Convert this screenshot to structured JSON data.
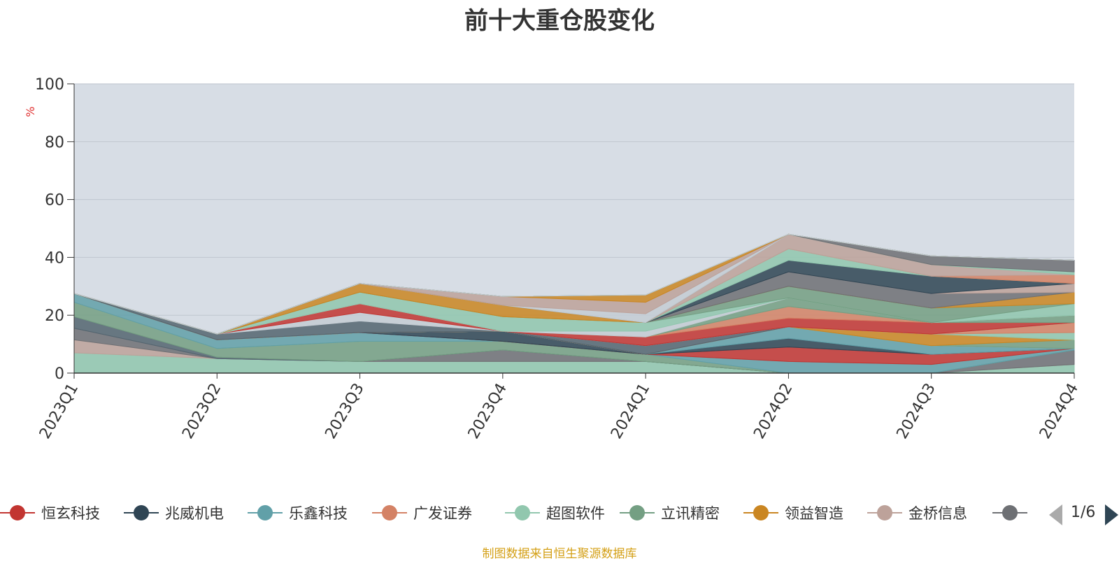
{
  "chart_data": {
    "type": "area",
    "title": "前十大重仓股变化",
    "ylabel": "%",
    "ylim": [
      0,
      100
    ],
    "yticks": [
      0,
      20,
      40,
      60,
      80,
      100
    ],
    "categories": [
      "2023Q1",
      "2023Q2",
      "2023Q3",
      "2023Q4",
      "2024Q1",
      "2024Q2",
      "2024Q3",
      "2024Q4"
    ],
    "stacked": true,
    "grid": true,
    "legend_position": "bottom",
    "series": [
      {
        "name": "恒玄科技",
        "color": "#c23531",
        "values": [
          0,
          0,
          0,
          0,
          0,
          5,
          3.5,
          0
        ]
      },
      {
        "name": "兆威机电",
        "color": "#2f4554",
        "values": [
          0,
          0,
          0,
          3.5,
          0,
          3,
          0,
          0
        ]
      },
      {
        "name": "乐鑫科技",
        "color": "#61a0a8",
        "values": [
          0,
          0,
          0,
          0,
          0,
          4,
          3,
          0.5
        ]
      },
      {
        "name": "广发证券",
        "color": "#d48265",
        "values": [
          0,
          0,
          0,
          0,
          0,
          0,
          0,
          3.5
        ]
      },
      {
        "name": "超图软件",
        "color": "#91c7ae",
        "values": [
          7,
          5,
          4,
          4,
          4,
          0,
          0,
          3
        ]
      },
      {
        "name": "立讯精密",
        "color": "#749f83",
        "values": [
          0,
          0,
          0,
          0,
          2.5,
          0,
          0,
          0
        ]
      },
      {
        "name": "领益智造",
        "color": "#ca8622",
        "values": [
          0,
          0,
          0,
          0,
          0,
          0,
          4,
          0
        ]
      },
      {
        "name": "金桥信息",
        "color": "#bda29a",
        "values": [
          4.5,
          0,
          0,
          0,
          0,
          0,
          0,
          0
        ]
      },
      {
        "name": "",
        "color": "#6e7074",
        "values": [
          4,
          0,
          0,
          4,
          0,
          0,
          0,
          5
        ]
      },
      {
        "name": "",
        "color": "#546570",
        "values": [
          0,
          0,
          0,
          0,
          0,
          0,
          0,
          0
        ]
      },
      {
        "name": "",
        "color": "#c4ccd3",
        "values": [
          0,
          0,
          0,
          0,
          0,
          0,
          0,
          0
        ]
      }
    ],
    "layers": [
      {
        "color": "#91c7ae",
        "values": [
          7,
          5,
          4,
          4,
          4,
          0,
          0,
          3
        ]
      },
      {
        "color": "#bda29a",
        "values": [
          4.5,
          0,
          0,
          0,
          0,
          0,
          0,
          0
        ]
      },
      {
        "color": "#6e7074",
        "values": [
          4,
          0,
          0,
          4,
          0,
          0,
          0,
          5
        ]
      },
      {
        "color": "#546570",
        "values": [
          4,
          0.5,
          0,
          0,
          0,
          0,
          0,
          0
        ]
      },
      {
        "color": "#749f83",
        "values": [
          5,
          3,
          7,
          3,
          2.5,
          0,
          0,
          0
        ]
      },
      {
        "color": "#61a0a8",
        "values": [
          3,
          3,
          3,
          0,
          0,
          4,
          3,
          0.5
        ]
      },
      {
        "color": "#c23531",
        "values": [
          0,
          0,
          0,
          0,
          0,
          5,
          3.5,
          0
        ]
      },
      {
        "color": "#2f4554",
        "values": [
          0,
          0,
          0,
          3.5,
          0,
          3,
          0,
          0
        ]
      },
      {
        "color": "#61a0a8",
        "values": [
          0,
          0,
          0,
          0,
          0,
          4,
          3,
          0
        ]
      },
      {
        "color": "#c4ccd3",
        "values": [
          0,
          0,
          0,
          0,
          0,
          0,
          0,
          0
        ]
      },
      {
        "color": "#749f83",
        "values": [
          0,
          0,
          0,
          0,
          0,
          0,
          0,
          3
        ]
      },
      {
        "color": "#ca8622",
        "values": [
          0,
          0,
          0,
          0,
          0,
          0,
          4,
          0
        ]
      },
      {
        "color": "#91c7ae",
        "values": [
          0,
          0,
          0,
          0,
          0,
          0,
          0,
          2.5
        ]
      },
      {
        "color": "#d48265",
        "values": [
          0,
          0,
          0,
          0,
          0,
          0,
          0,
          3.5
        ]
      },
      {
        "color": "#546570",
        "values": [
          0,
          2,
          4,
          0,
          3,
          0,
          0,
          0
        ]
      },
      {
        "color": "#c4ccd3",
        "values": [
          0,
          0,
          3,
          0,
          0,
          0,
          0,
          0
        ]
      },
      {
        "color": "#c23531",
        "values": [
          0,
          0,
          3,
          0,
          3,
          3,
          4,
          0
        ]
      },
      {
        "color": "#d48265",
        "values": [
          0,
          0,
          0,
          0,
          0,
          4,
          0,
          0
        ]
      },
      {
        "color": "#749f83",
        "values": [
          0,
          0,
          0,
          0,
          0,
          3,
          0,
          2.5
        ]
      },
      {
        "color": "#c4ccd3",
        "values": [
          0,
          0,
          0,
          0,
          2,
          0,
          0,
          0
        ]
      },
      {
        "color": "#91c7ae",
        "values": [
          0,
          0,
          4,
          5,
          3,
          0,
          0,
          4
        ]
      },
      {
        "color": "#749f83",
        "values": [
          0,
          0,
          0,
          0,
          0,
          4,
          5,
          0
        ]
      },
      {
        "color": "#ca8622",
        "values": [
          0,
          0,
          3,
          4,
          0,
          0,
          0,
          4
        ]
      },
      {
        "color": "#6e7074",
        "values": [
          0,
          0,
          0,
          0,
          0,
          5,
          5,
          0
        ]
      },
      {
        "color": "#bda29a",
        "values": [
          0,
          0,
          0,
          0,
          0,
          0,
          0,
          3
        ]
      },
      {
        "color": "#2f4554",
        "values": [
          0,
          0,
          0,
          0,
          0,
          4,
          6,
          0
        ]
      },
      {
        "color": "#91c7ae",
        "values": [
          0,
          0,
          0,
          0,
          0,
          4,
          0,
          0
        ]
      },
      {
        "color": "#d48265",
        "values": [
          0,
          0,
          0,
          0,
          0,
          0,
          0,
          3
        ]
      },
      {
        "color": "#bda29a",
        "values": [
          0,
          0,
          0,
          0,
          0,
          5,
          4,
          0
        ]
      },
      {
        "color": "#91c7ae",
        "values": [
          0,
          0,
          0,
          0,
          0,
          0,
          0,
          1
        ]
      },
      {
        "color": "#6e7074",
        "values": [
          0,
          0,
          0,
          0,
          0,
          0,
          3,
          4
        ]
      },
      {
        "color": "#c4ccd3",
        "values": [
          0,
          0,
          0,
          0,
          3,
          0,
          0,
          0
        ]
      },
      {
        "color": "#bda29a",
        "values": [
          0,
          0,
          0,
          3,
          4,
          0,
          0,
          0
        ]
      },
      {
        "color": "#ca8622",
        "values": [
          0,
          0,
          0,
          0,
          2.5,
          0,
          0,
          0
        ]
      },
      {
        "color": "#61a0a8",
        "values": [
          0,
          0,
          0,
          0,
          0,
          0,
          0,
          0
        ]
      },
      {
        "color": "#c4ccd3",
        "values": [
          0,
          0,
          0,
          0,
          0,
          0,
          0,
          0
        ]
      }
    ]
  },
  "legend": {
    "items": [
      {
        "name": "恒玄科技",
        "color": "#c23531"
      },
      {
        "name": "兆威机电",
        "color": "#2f4554"
      },
      {
        "name": "乐鑫科技",
        "color": "#61a0a8"
      },
      {
        "name": "广发证券",
        "color": "#d48265"
      },
      {
        "name": "超图软件",
        "color": "#91c7ae"
      },
      {
        "name": "立讯精密",
        "color": "#749f83"
      },
      {
        "name": "领益智造",
        "color": "#ca8622"
      },
      {
        "name": "金桥信息",
        "color": "#bda29a"
      },
      {
        "name": "",
        "color": "#6e7074"
      }
    ],
    "page_indicator": "1/6",
    "prev_icon": "triangle-left-icon",
    "next_icon": "triangle-right-icon"
  },
  "footer": {
    "source_note": "制图数据来自恒生聚源数据库"
  },
  "colors": {
    "plot_background": "#d7dde5",
    "grid": "#bfc6cf",
    "axis": "#333333",
    "ylabel": "#e03030",
    "source_note": "#d4a017"
  }
}
